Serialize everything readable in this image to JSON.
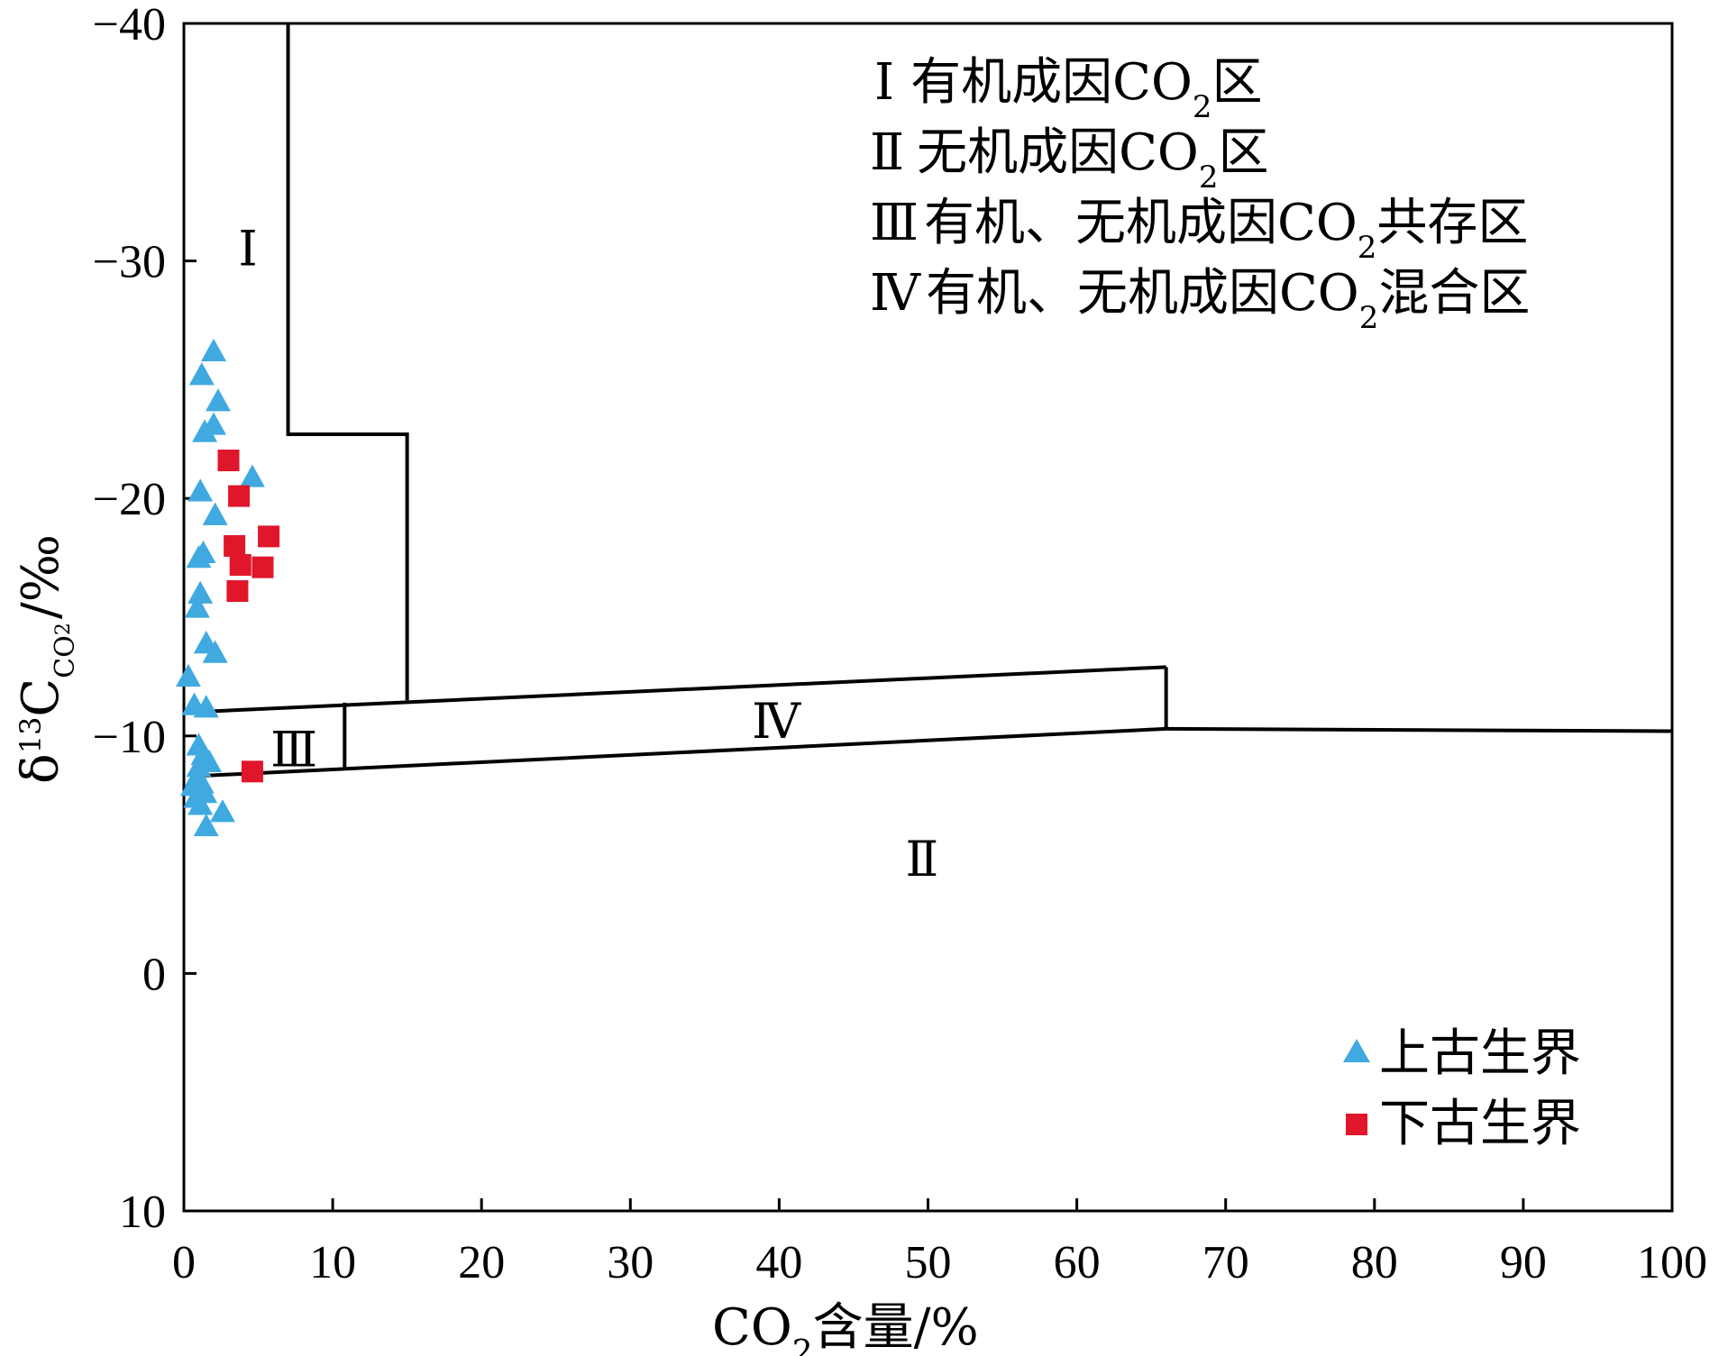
{
  "chart_data": {
    "type": "scatter",
    "xlabel": "CO₂含量/%",
    "ylabel": "δ¹³C_CO₂/‰",
    "xlim": [
      0,
      100
    ],
    "ylim": [
      -40,
      10
    ],
    "y_axis_inverted": true,
    "x_ticks": [
      0,
      10,
      20,
      30,
      40,
      50,
      60,
      70,
      80,
      90,
      100
    ],
    "x_tick_labels": [
      "0",
      "10",
      "20",
      "30",
      "40",
      "50",
      "60",
      "70",
      "80",
      "90",
      "100"
    ],
    "y_ticks": [
      -40,
      -30,
      -20,
      -10,
      0,
      10
    ],
    "y_tick_labels": [
      "−40",
      "−30",
      "−20",
      "−10",
      "0",
      "10"
    ],
    "grid": false,
    "legend_position": "bottom-right",
    "series": [
      {
        "name": "上古生界",
        "marker": "triangle",
        "color": "#3fa9e0",
        "points": [
          [
            2.0,
            -26.2
          ],
          [
            1.2,
            -25.2
          ],
          [
            2.3,
            -24.1
          ],
          [
            2.0,
            -23.1
          ],
          [
            1.4,
            -22.8
          ],
          [
            4.6,
            -20.9
          ],
          [
            1.1,
            -20.3
          ],
          [
            2.1,
            -19.3
          ],
          [
            1.3,
            -17.7
          ],
          [
            1.0,
            -17.5
          ],
          [
            1.1,
            -16.0
          ],
          [
            0.9,
            -15.4
          ],
          [
            1.5,
            -13.9
          ],
          [
            2.1,
            -13.5
          ],
          [
            0.3,
            -12.5
          ],
          [
            0.7,
            -11.3
          ],
          [
            1.5,
            -11.2
          ],
          [
            1.0,
            -9.6
          ],
          [
            1.3,
            -9.2
          ],
          [
            1.7,
            -8.9
          ],
          [
            1.0,
            -8.7
          ],
          [
            0.9,
            -8.3
          ],
          [
            1.2,
            -8.0
          ],
          [
            0.6,
            -7.9
          ],
          [
            1.4,
            -7.6
          ],
          [
            0.8,
            -7.4
          ],
          [
            1.1,
            -7.1
          ],
          [
            2.6,
            -6.8
          ],
          [
            1.5,
            -6.2
          ]
        ]
      },
      {
        "name": "下古生界",
        "marker": "square",
        "color": "#e0162b",
        "points": [
          [
            3.0,
            -21.6
          ],
          [
            3.7,
            -20.1
          ],
          [
            5.7,
            -18.4
          ],
          [
            3.4,
            -18.0
          ],
          [
            3.8,
            -17.2
          ],
          [
            5.3,
            -17.1
          ],
          [
            3.6,
            -16.1
          ],
          [
            4.6,
            -8.5
          ]
        ]
      }
    ],
    "boundaries": [
      {
        "label": "I/outer",
        "points": [
          [
            7,
            -40
          ],
          [
            7,
            -22.7
          ],
          [
            15,
            -22.7
          ],
          [
            15,
            -11.5
          ]
        ]
      },
      {
        "label": "III-IV upper",
        "points": [
          [
            0.5,
            -11.0
          ],
          [
            66,
            -12.9
          ]
        ]
      },
      {
        "label": "III-IV lower",
        "points": [
          [
            0.5,
            -8.3
          ],
          [
            66,
            -10.3
          ]
        ]
      },
      {
        "label": "III/IV divider",
        "points": [
          [
            10.8,
            -8.6
          ],
          [
            10.8,
            -11.4
          ]
        ]
      },
      {
        "label": "IV right edge",
        "points": [
          [
            66,
            -10.3
          ],
          [
            66,
            -12.9
          ]
        ]
      },
      {
        "label": "II upper edge",
        "points": [
          [
            66,
            -10.3
          ],
          [
            100,
            -10.2
          ]
        ]
      }
    ],
    "zone_labels": [
      {
        "text": "Ⅰ",
        "x": 4.3,
        "y": -30.5
      },
      {
        "text": "Ⅲ",
        "x": 7.4,
        "y": -9.4
      },
      {
        "text": "Ⅳ",
        "x": 39.8,
        "y": -10.6
      },
      {
        "text": "Ⅱ",
        "x": 49.6,
        "y": -4.8
      }
    ],
    "notes": [
      {
        "num": "Ⅰ",
        "text": "有机成因CO",
        "sub": "2",
        "tail": "区"
      },
      {
        "num": "Ⅱ",
        "text": "无机成因CO",
        "sub": "2",
        "tail": "区"
      },
      {
        "num": "Ⅲ",
        "text": "有机、无机成因CO",
        "sub": "2",
        "tail": "共存区"
      },
      {
        "num": "Ⅳ",
        "text": "有机、无机成因CO",
        "sub": "2",
        "tail": "混合区"
      }
    ],
    "axis_titles": {
      "x": {
        "main": "CO",
        "sub": "2",
        "tail": "含量/%"
      },
      "y": {
        "delta": "δ",
        "sup": "13",
        "main": "C",
        "sub": "CO",
        "subsub": "2",
        "tail": "/‰"
      }
    }
  }
}
